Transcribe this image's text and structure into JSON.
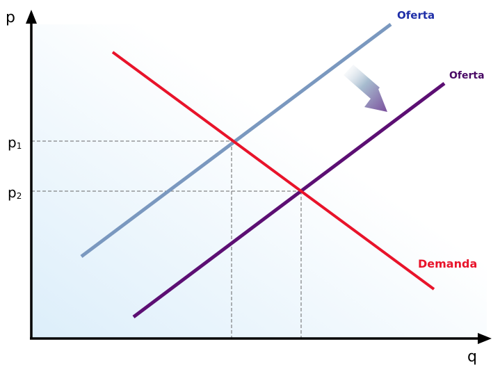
{
  "axes": {
    "y_label": "p",
    "x_label": "q"
  },
  "price_ticks": [
    {
      "base": "p",
      "sub": "1"
    },
    {
      "base": "p",
      "sub": "2"
    }
  ],
  "curves": {
    "supply_original": {
      "label": "Oferta",
      "color": "#7a98bf"
    },
    "supply_shifted": {
      "label": "Oferta",
      "color": "#5c0f73"
    },
    "demand": {
      "label": "Demanda",
      "color": "#e8132a"
    }
  },
  "label_colors": {
    "supply_original": "#1f2fa8",
    "supply_shifted": "#4a0a66",
    "demand": "#e8132a"
  },
  "shift_arrow": {
    "direction": "down-right",
    "color": "#7a4f9c"
  },
  "background_gradient": {
    "from": "#dceefa",
    "to": "#ffffff"
  }
}
